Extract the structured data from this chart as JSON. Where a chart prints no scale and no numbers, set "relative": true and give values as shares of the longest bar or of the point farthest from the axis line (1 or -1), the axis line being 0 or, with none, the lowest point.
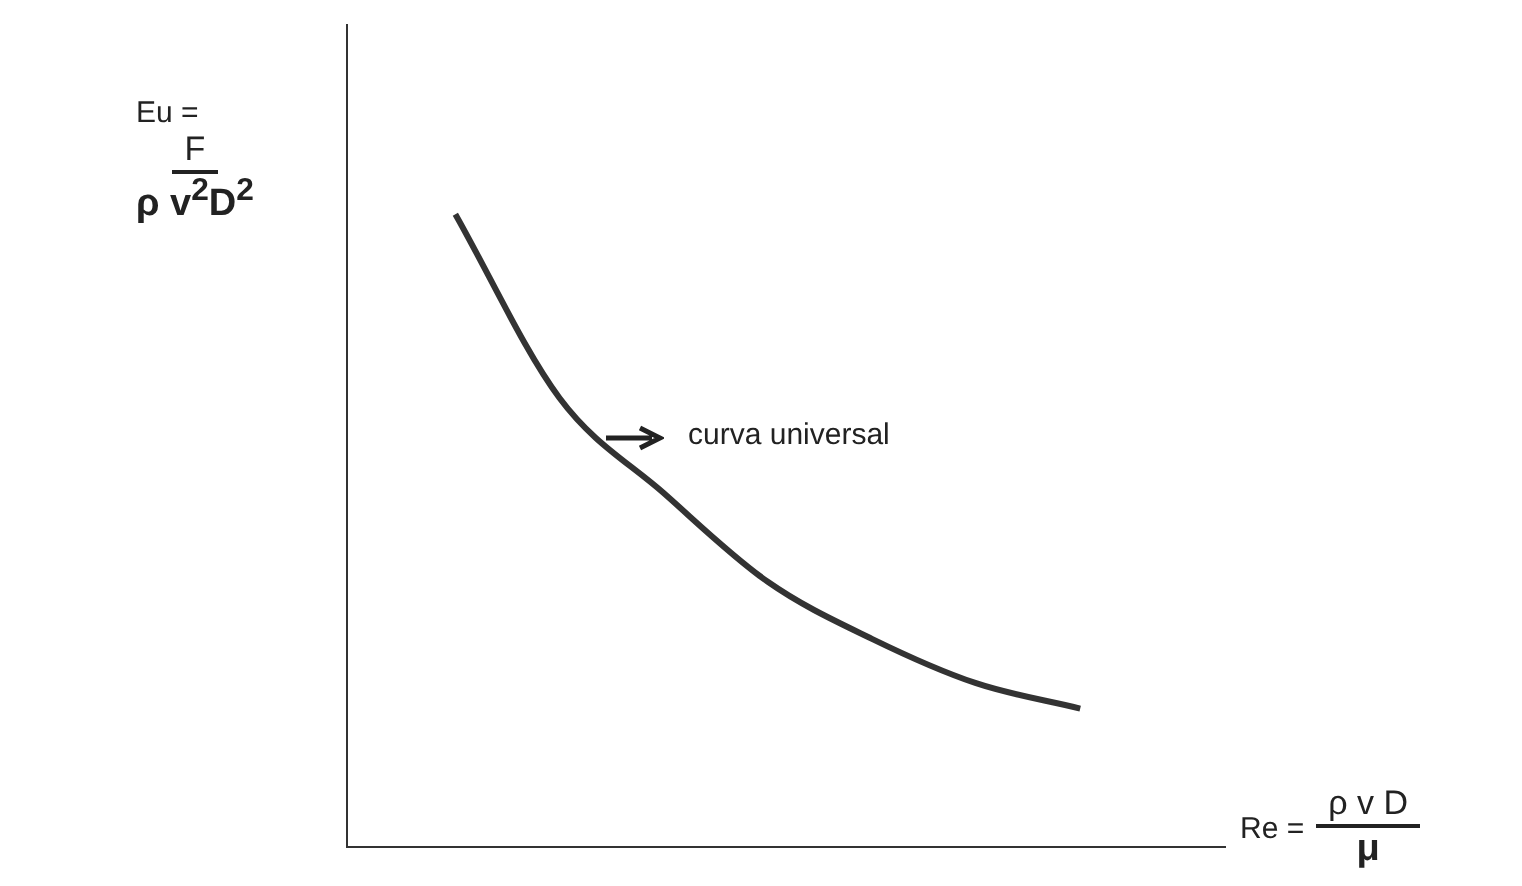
{
  "chart_data": {
    "type": "line",
    "relative": true,
    "categories": [
      null,
      null,
      null,
      null,
      null,
      null,
      null
    ],
    "series": [
      {
        "color": "#333333",
        "values": [
          1,
          0.71,
          0.56,
          0.42,
          0.33,
          0.26,
          0.22
        ]
      }
    ],
    "ylabel": "Eu =\nF\nρ v$^{2}$D$^{2}$",
    "xlabel": "Re =\nρ v D\nμ",
    "annotations": [
      "curva universal"
    ],
    "grid": false,
    "legend": false,
    "marker": "none",
    "line_style": "solid"
  }
}
